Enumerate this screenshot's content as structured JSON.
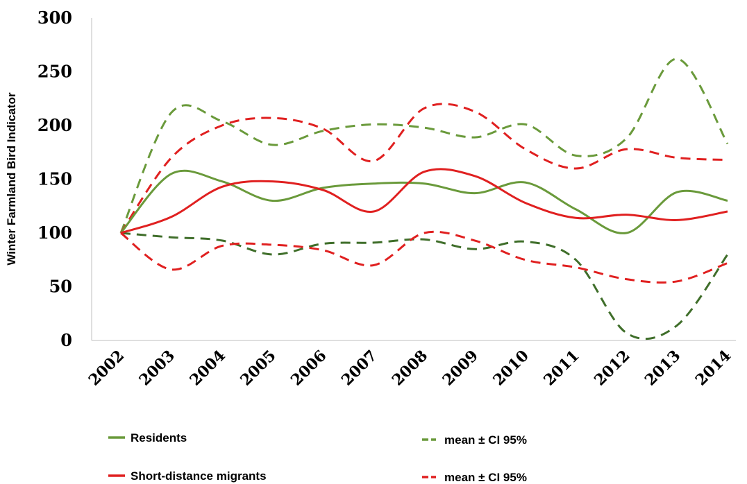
{
  "chart_data": {
    "type": "line",
    "ylabel": "Winter Farmland Bird Indicator",
    "xlabel": "",
    "title": "",
    "categories": [
      "2002",
      "2003",
      "2004",
      "2005",
      "2006",
      "2007",
      "2008",
      "2009",
      "2010",
      "2011",
      "2012",
      "2013",
      "2014"
    ],
    "ylim": [
      0,
      300
    ],
    "yticks": [
      0,
      50,
      100,
      150,
      200,
      250,
      300
    ],
    "grid": false,
    "series": [
      {
        "name": "Residents",
        "color": "#6a9a3b",
        "dash": false,
        "values": [
          100,
          155,
          148,
          130,
          142,
          146,
          146,
          137,
          147,
          122,
          100,
          138,
          130
        ]
      },
      {
        "name": "mean ± CI 95%",
        "color": "#6a9a3b",
        "dash": true,
        "values": [
          100,
          212,
          204,
          182,
          195,
          201,
          198,
          189,
          201,
          172,
          188,
          262,
          183
        ]
      },
      {
        "name": "",
        "color": "#3f6e2a",
        "dash": true,
        "values": [
          100,
          96,
          93,
          80,
          90,
          91,
          94,
          85,
          92,
          75,
          7,
          14,
          80
        ]
      },
      {
        "name": "Short-distance migrants",
        "color": "#e02020",
        "dash": false,
        "values": [
          100,
          115,
          143,
          148,
          140,
          120,
          157,
          153,
          128,
          114,
          117,
          112,
          120
        ]
      },
      {
        "name": "mean ± CI 95%",
        "color": "#e02020",
        "dash": true,
        "values": [
          100,
          170,
          200,
          207,
          197,
          167,
          216,
          213,
          178,
          160,
          178,
          170,
          168
        ]
      },
      {
        "name": "",
        "color": "#e02020",
        "dash": true,
        "values": [
          100,
          66,
          88,
          89,
          84,
          70,
          100,
          93,
          75,
          68,
          57,
          55,
          72
        ]
      }
    ],
    "legend": [
      {
        "label": "Residents",
        "color": "#6a9a3b",
        "dash": false
      },
      {
        "label": "mean ± CI 95%",
        "color": "#6a9a3b",
        "dash": true
      },
      {
        "label": "Short-distance migrants",
        "color": "#e02020",
        "dash": false
      },
      {
        "label": "mean ± CI 95%",
        "color": "#e02020",
        "dash": true
      }
    ],
    "legend_position": "bottom"
  }
}
